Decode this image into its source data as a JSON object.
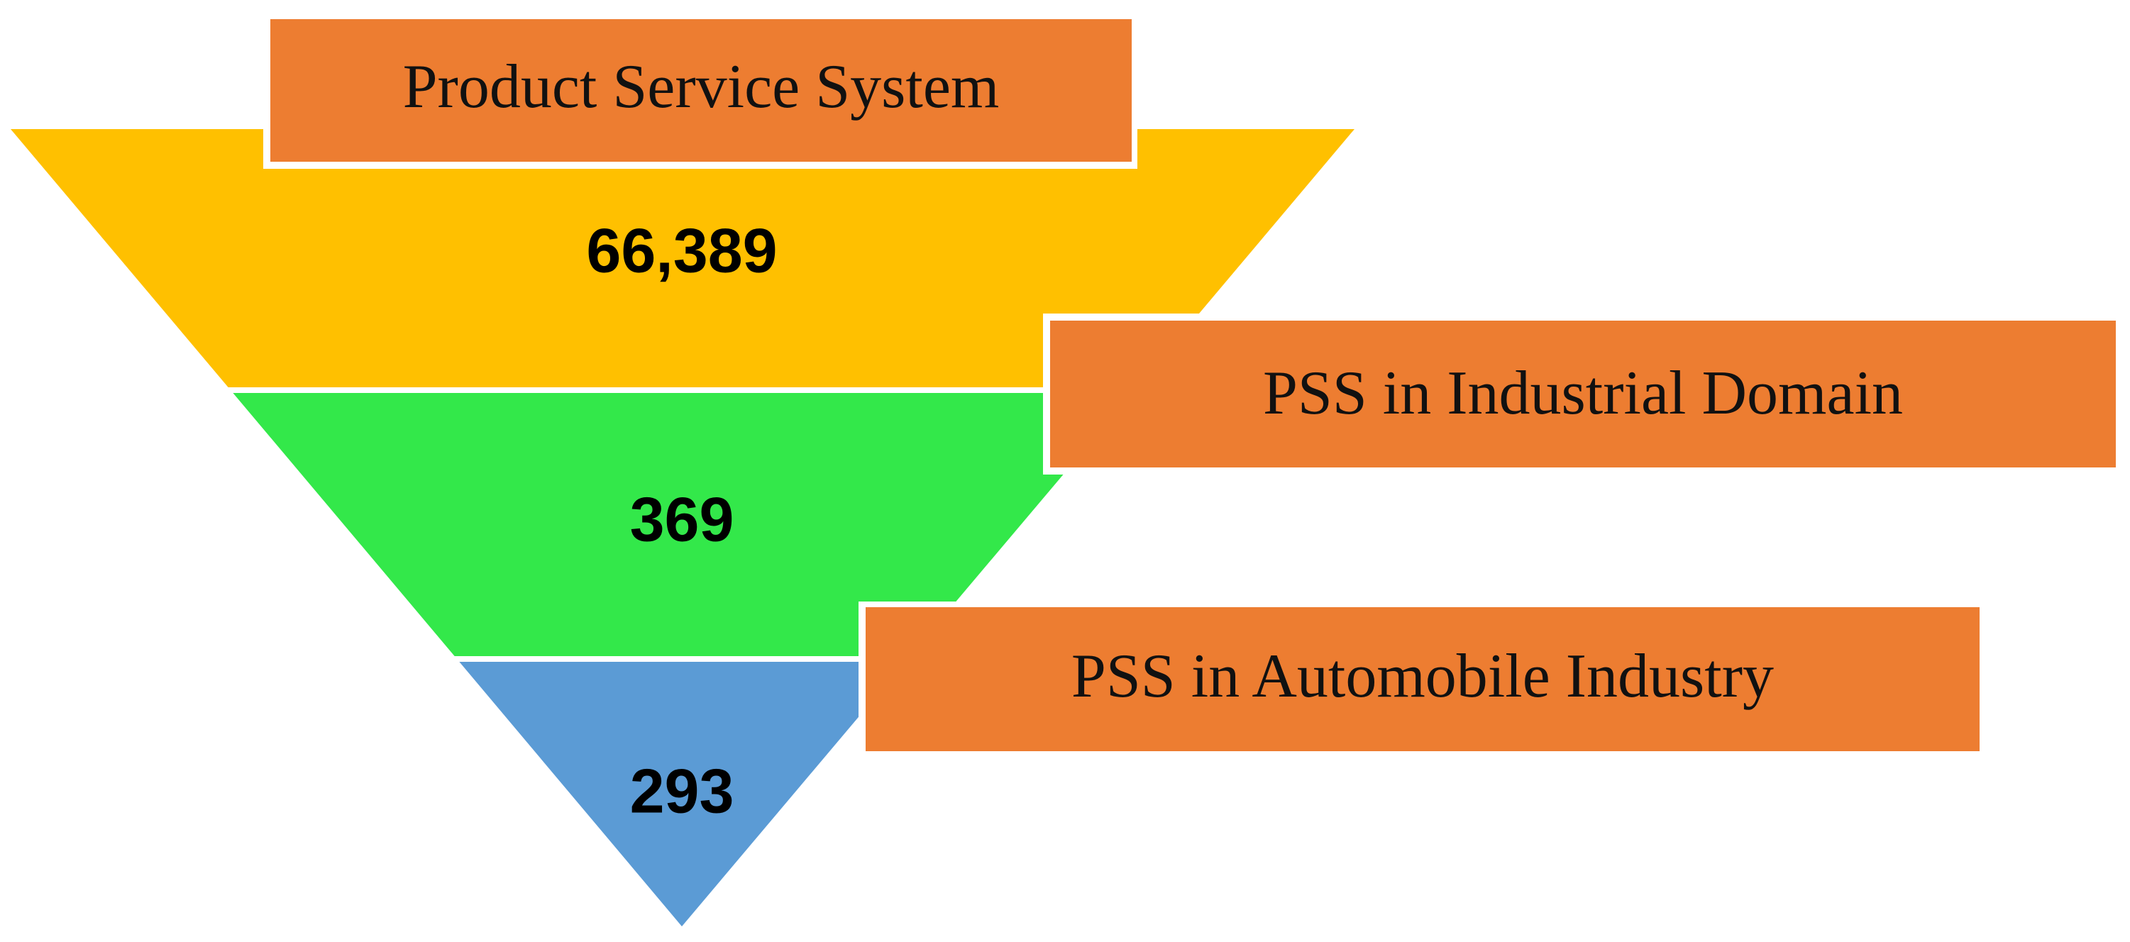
{
  "stages": [
    {
      "label": "Product Service System",
      "count": "66,389"
    },
    {
      "label": "PSS in Industrial Domain",
      "count": "369"
    },
    {
      "label": "PSS in Automobile Industry",
      "count": "293"
    }
  ]
}
